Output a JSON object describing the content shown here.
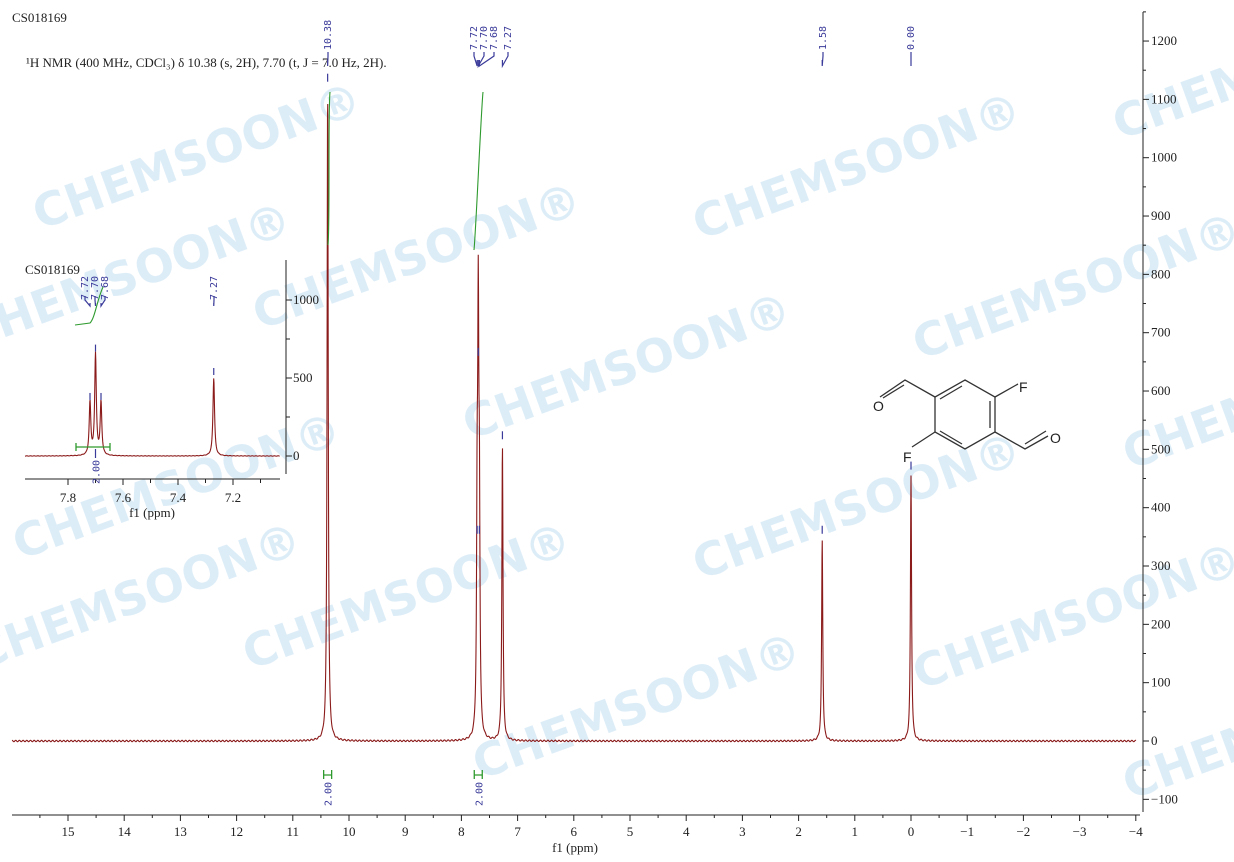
{
  "watermark": "CHEMSOON",
  "sample_id": "CS018169",
  "nmr_description": "¹H NMR (400 MHz, CDCl₃) δ 10.38 (s, 2H), 7.70 (t, J = 7.0 Hz, 2H).",
  "colors": {
    "spectrum": "#8b1a1a",
    "peak_label": "#3a3a9a",
    "integral": "#2e9a2e",
    "watermark": "#cfe6f5"
  },
  "molecule": {
    "atoms": [
      "O",
      "F",
      "O",
      "F"
    ]
  },
  "chart_data": [
    {
      "type": "line",
      "title": "",
      "xlabel": "f1 (ppm)",
      "ylabel": "",
      "xlim": [
        15.8,
        -4
      ],
      "ylim": [
        -130,
        1250
      ],
      "x_reversed": true,
      "x_ticks": [
        "15",
        "14",
        "13",
        "12",
        "11",
        "10",
        "9",
        "8",
        "7",
        "6",
        "5",
        "4",
        "3",
        "2",
        "1",
        "0",
        "−1",
        "−2",
        "−3",
        "−4"
      ],
      "x_tick_values": [
        15,
        14,
        13,
        12,
        11,
        10,
        9,
        8,
        7,
        6,
        5,
        4,
        3,
        2,
        1,
        0,
        -1,
        -2,
        -3,
        -4
      ],
      "y_ticks": [
        "1200",
        "1100",
        "1000",
        "900",
        "800",
        "700",
        "600",
        "500",
        "400",
        "300",
        "200",
        "100",
        "0",
        "−100"
      ],
      "y_tick_values": [
        1200,
        1100,
        1000,
        900,
        800,
        700,
        600,
        500,
        400,
        300,
        200,
        100,
        0,
        -100
      ],
      "y_axis_side": "right",
      "peaks": [
        {
          "ppm": 10.38,
          "intensity": 1120,
          "label": "10.38"
        },
        {
          "ppm": 7.72,
          "intensity": 345,
          "label": "7.72"
        },
        {
          "ppm": 7.7,
          "intensity": 650,
          "label": "7.70"
        },
        {
          "ppm": 7.68,
          "intensity": 345,
          "label": "7.68"
        },
        {
          "ppm": 7.27,
          "intensity": 507,
          "label": "7.27"
        },
        {
          "ppm": 1.58,
          "intensity": 345,
          "label": "1.58"
        },
        {
          "ppm": 0.0,
          "intensity": 455,
          "label": "0.00"
        }
      ],
      "integrals": [
        {
          "ppm": 10.38,
          "value": "2.00"
        },
        {
          "ppm": 7.7,
          "value": "2.00"
        }
      ]
    },
    {
      "type": "line",
      "title": "CS018169",
      "xlabel": "f1 (ppm)",
      "ylabel": "",
      "xlim": [
        7.95,
        7.05
      ],
      "ylim": [
        -150,
        1250
      ],
      "x_reversed": true,
      "x_ticks": [
        "7.8",
        "7.6",
        "7.4",
        "7.2"
      ],
      "x_tick_values": [
        7.8,
        7.6,
        7.4,
        7.2
      ],
      "y_ticks": [
        "1000",
        "500",
        "0"
      ],
      "y_tick_values": [
        1000,
        500,
        0
      ],
      "y_axis_side": "right",
      "peaks": [
        {
          "ppm": 7.72,
          "intensity": 340,
          "label": "7.72"
        },
        {
          "ppm": 7.7,
          "intensity": 650,
          "label": "7.70"
        },
        {
          "ppm": 7.68,
          "intensity": 340,
          "label": "7.68"
        },
        {
          "ppm": 7.27,
          "intensity": 500,
          "label": "7.27"
        }
      ],
      "integrals": [
        {
          "ppm": 7.7,
          "value": "2.00"
        }
      ]
    }
  ]
}
